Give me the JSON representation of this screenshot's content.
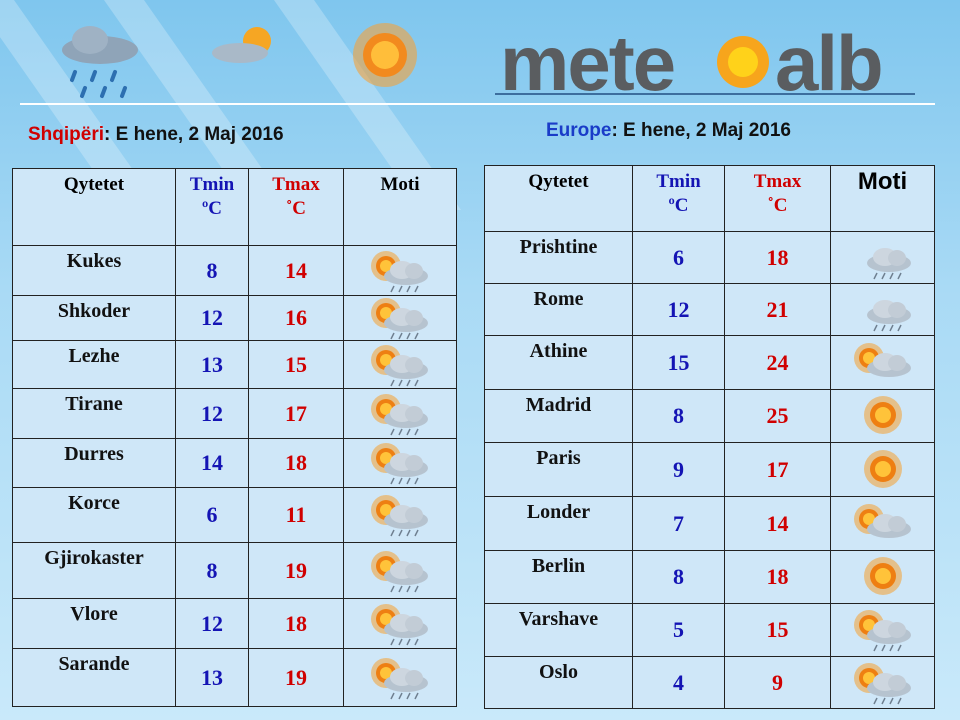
{
  "logo": {
    "left": "mete",
    "right": "alb"
  },
  "albania": {
    "heading": {
      "label": "Shqipëri",
      "date": ": E hene, 2  Maj 2016"
    },
    "columns": [
      {
        "name": "Qytetet"
      },
      {
        "name": "Tmin",
        "unit": "ºC"
      },
      {
        "name": "Tmax",
        "unit": "˚C"
      },
      {
        "name": "Moti"
      }
    ],
    "rows": [
      {
        "city": "Kukes",
        "tmin": 8,
        "tmax": 14,
        "icon": "sun-cloud-rain"
      },
      {
        "city": "Shkoder",
        "tmin": 12,
        "tmax": 16,
        "icon": "sun-cloud-rain"
      },
      {
        "city": "Lezhe",
        "tmin": 13,
        "tmax": 15,
        "icon": "sun-cloud-rain"
      },
      {
        "city": "Tirane",
        "tmin": 12,
        "tmax": 17,
        "icon": "sun-cloud-rain"
      },
      {
        "city": "Durres",
        "tmin": 14,
        "tmax": 18,
        "icon": "sun-cloud-rain"
      },
      {
        "city": "Korce",
        "tmin": 6,
        "tmax": 11,
        "icon": "sun-cloud-rain"
      },
      {
        "city": "Gjirokaster",
        "tmin": 8,
        "tmax": 19,
        "icon": "sun-cloud-rain"
      },
      {
        "city": "Vlore",
        "tmin": 12,
        "tmax": 18,
        "icon": "sun-cloud-rain"
      },
      {
        "city": "Sarande",
        "tmin": 13,
        "tmax": 19,
        "icon": "sun-cloud-rain"
      }
    ]
  },
  "europe": {
    "heading": {
      "label": "Europe",
      "date": ": E hene, 2 Maj 2016"
    },
    "columns": [
      {
        "name": "Qytetet"
      },
      {
        "name": "Tmin",
        "unit": "ºC"
      },
      {
        "name": "Tmax",
        "unit": "˚C"
      },
      {
        "name": "Moti"
      }
    ],
    "rows": [
      {
        "city": "Prishtine",
        "tmin": 6,
        "tmax": 18,
        "icon": "cloud-rain"
      },
      {
        "city": "Rome",
        "tmin": 12,
        "tmax": 21,
        "icon": "cloud-rain"
      },
      {
        "city": "Athine",
        "tmin": 15,
        "tmax": 24,
        "icon": "sun-cloud"
      },
      {
        "city": "Madrid",
        "tmin": 8,
        "tmax": 25,
        "icon": "sun"
      },
      {
        "city": "Paris",
        "tmin": 9,
        "tmax": 17,
        "icon": "sun"
      },
      {
        "city": "Londer",
        "tmin": 7,
        "tmax": 14,
        "icon": "sun-cloud"
      },
      {
        "city": "Berlin",
        "tmin": 8,
        "tmax": 18,
        "icon": "sun"
      },
      {
        "city": "Varshave",
        "tmin": 5,
        "tmax": 15,
        "icon": "sun-cloud-rain"
      },
      {
        "city": "Oslo",
        "tmin": 4,
        "tmax": 9,
        "icon": "sun-cloud-rain"
      }
    ]
  }
}
